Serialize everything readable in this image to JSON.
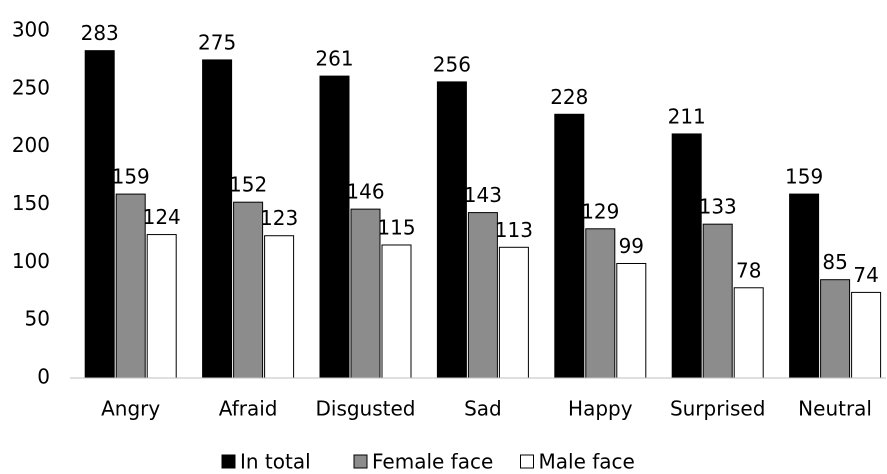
{
  "chart_data": {
    "type": "bar",
    "categories": [
      "Angry",
      "Afraid",
      "Disgusted",
      "Sad",
      "Happy",
      "Surprised",
      "Neutral"
    ],
    "series": [
      {
        "name": "In total",
        "color": "#000000",
        "values": [
          283,
          275,
          261,
          256,
          228,
          211,
          159
        ]
      },
      {
        "name": "Female face",
        "color": "#8c8c8c",
        "values": [
          159,
          152,
          146,
          143,
          129,
          133,
          85
        ]
      },
      {
        "name": "Male face",
        "color": "#ffffff",
        "values": [
          124,
          123,
          115,
          113,
          99,
          78,
          74
        ]
      }
    ],
    "ylim": [
      0,
      300
    ],
    "yticks": [
      0,
      50,
      100,
      150,
      200,
      250,
      300
    ],
    "grid": false,
    "legend": "bottom"
  }
}
